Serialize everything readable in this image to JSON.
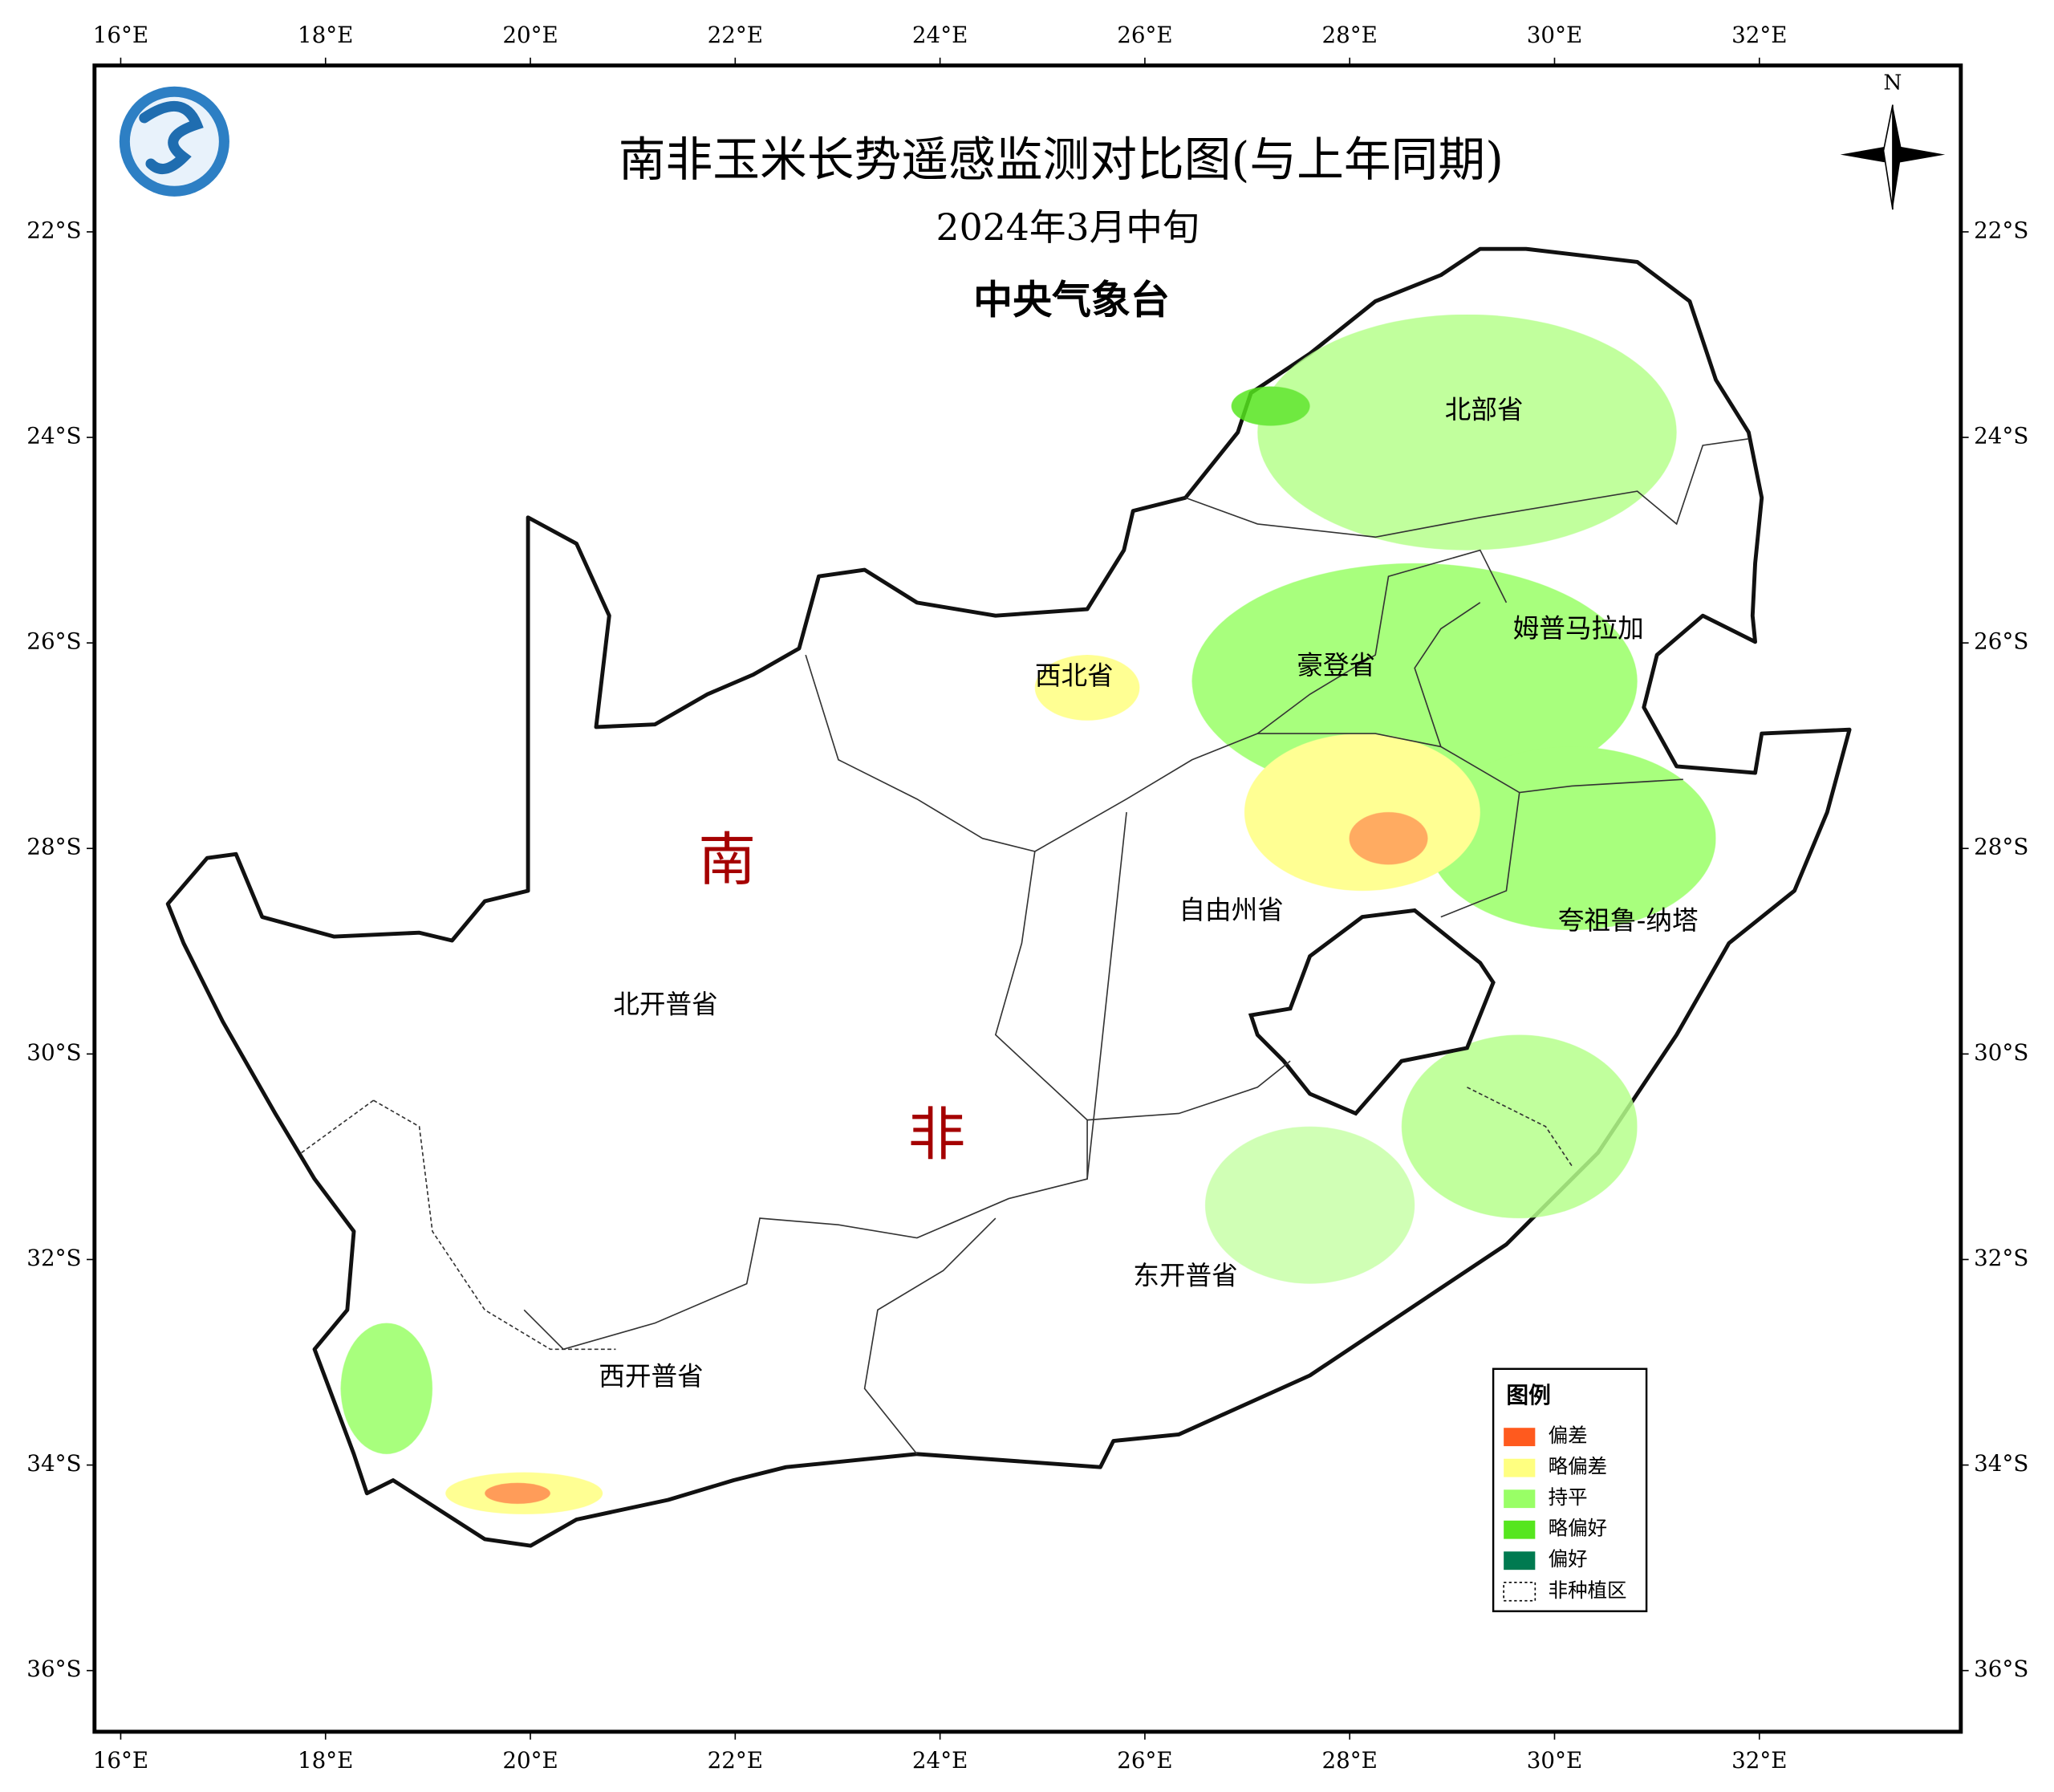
{
  "map": {
    "title": "南非玉米长势遥感监测对比图(与上年同期)",
    "subtitle": "2024年3月中旬",
    "agency": "中央气象台",
    "north": "N",
    "lon_ticks": [
      "16°E",
      "18°E",
      "20°E",
      "22°E",
      "24°E",
      "26°E",
      "28°E",
      "30°E",
      "32°E"
    ],
    "lat_ticks": [
      "22°S",
      "24°S",
      "26°S",
      "28°S",
      "30°S",
      "32°S",
      "34°S",
      "36°S"
    ],
    "country": [
      "南",
      "非"
    ],
    "regions": [
      "北部省",
      "姆普马拉加",
      "豪登省",
      "西北省",
      "自由州省",
      "夸祖鲁-纳塔",
      "北开普省",
      "东开普省",
      "西开普省"
    ],
    "legend": {
      "title": "图例",
      "items": [
        {
          "label": "偏差",
          "color": "#ff5a1e"
        },
        {
          "label": "略偏差",
          "color": "#ffff80"
        },
        {
          "label": "持平",
          "color": "#99ff66"
        },
        {
          "label": "略偏好",
          "color": "#55e61e"
        },
        {
          "label": "偏好",
          "color": "#007a50"
        },
        {
          "label": "非种植区",
          "color": "#ffffff"
        }
      ]
    }
  }
}
